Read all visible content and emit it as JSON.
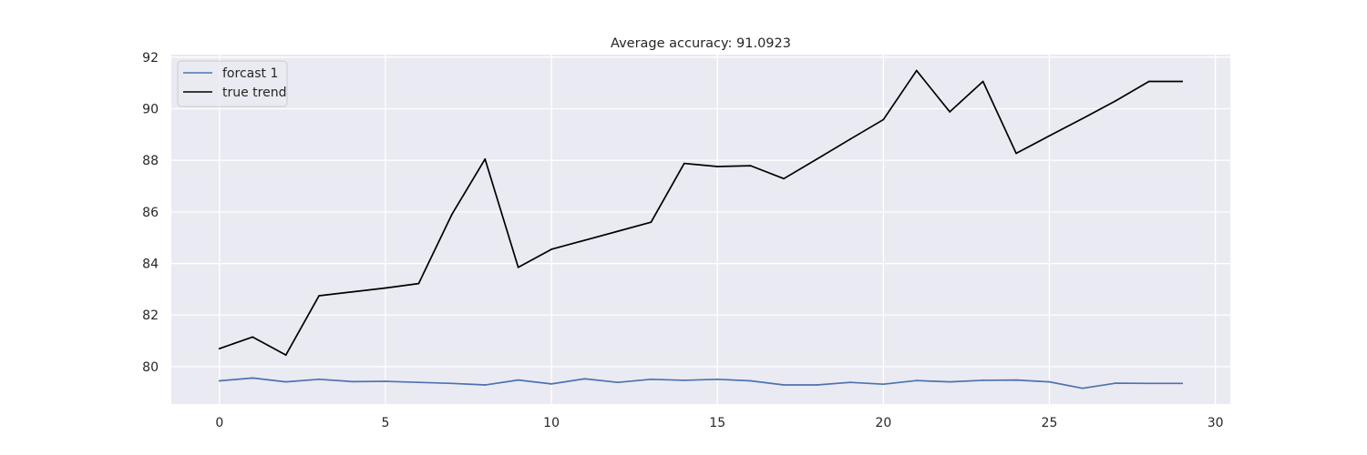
{
  "chart_data": {
    "type": "line",
    "title": "Average accuracy: 91.0923",
    "xlabel": "",
    "ylabel": "",
    "xlim": [
      -1.45,
      30.45
    ],
    "ylim": [
      78.55,
      92.1
    ],
    "xticks": [
      0,
      5,
      10,
      15,
      20,
      25,
      30
    ],
    "yticks": [
      80,
      82,
      84,
      86,
      88,
      90,
      92
    ],
    "grid": true,
    "legend_position": "top-left",
    "background": "#eaeaf2",
    "x": [
      0,
      1,
      2,
      3,
      4,
      5,
      6,
      7,
      8,
      9,
      10,
      11,
      12,
      13,
      14,
      15,
      16,
      17,
      18,
      19,
      20,
      21,
      22,
      23,
      24,
      25,
      26,
      27,
      28,
      29
    ],
    "series": [
      {
        "name": "forcast 1",
        "color": "#4c72b0",
        "values": [
          79.45,
          79.56,
          79.41,
          79.51,
          79.42,
          79.43,
          79.39,
          79.35,
          79.29,
          79.48,
          79.33,
          79.53,
          79.39,
          79.51,
          79.47,
          79.51,
          79.45,
          79.29,
          79.29,
          79.39,
          79.32,
          79.46,
          79.41,
          79.47,
          79.48,
          79.41,
          79.16,
          79.36,
          79.35,
          79.35
        ]
      },
      {
        "name": "true trend",
        "color": "#000000",
        "values": [
          80.7,
          81.15,
          80.45,
          82.75,
          82.9,
          83.05,
          83.22,
          85.9,
          88.05,
          83.85,
          84.55,
          84.9,
          85.25,
          85.6,
          87.88,
          87.76,
          87.79,
          87.29,
          88.05,
          88.82,
          89.58,
          91.48,
          89.88,
          91.06,
          88.27,
          88.95,
          89.62,
          90.31,
          91.06,
          91.06
        ]
      }
    ]
  }
}
